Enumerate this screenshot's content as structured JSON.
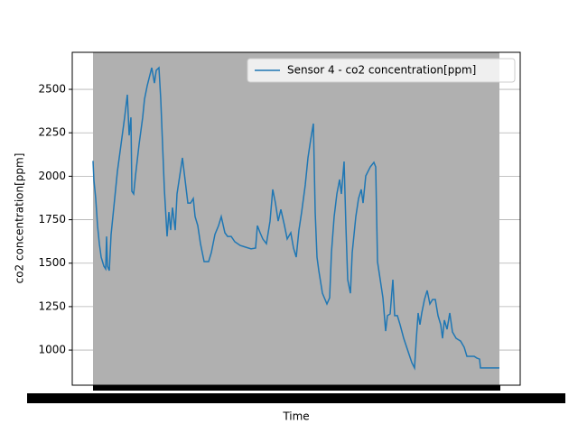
{
  "chart_data": {
    "type": "line",
    "xlabel": "Time",
    "ylabel": "co2 concentration[ppm]",
    "x": [
      0,
      1,
      3,
      5,
      7,
      9,
      12,
      14,
      15,
      16,
      18,
      20,
      23,
      27,
      31,
      35,
      38,
      40,
      42,
      43,
      45,
      47,
      51,
      55,
      57,
      60,
      65,
      68,
      70,
      73,
      75,
      77,
      79,
      82,
      84,
      86,
      88,
      91,
      93,
      96,
      99,
      102,
      105,
      108,
      111,
      113,
      116,
      119,
      123,
      128,
      131,
      135,
      139,
      142,
      146,
      149,
      153,
      157,
      163,
      169,
      175,
      180,
      182,
      185,
      188,
      192,
      196,
      199,
      202,
      205,
      208,
      212,
      215,
      219,
      222,
      225,
      228,
      231,
      235,
      238,
      241,
      244,
      246,
      248,
      250,
      254,
      259,
      262,
      264,
      267,
      270,
      273,
      275,
      278,
      280,
      282,
      285,
      287,
      291,
      294,
      297,
      299,
      302,
      307,
      311,
      313,
      315,
      318,
      321,
      324,
      326,
      329,
      332,
      334,
      337,
      340,
      344,
      349,
      353,
      356,
      358,
      360,
      362,
      364,
      367,
      370,
      373,
      376,
      379,
      382,
      385,
      387,
      389,
      392,
      395,
      398,
      402,
      407,
      411,
      414,
      418,
      422,
      425,
      428,
      429,
      450
    ],
    "series": [
      {
        "name": "Sensor 4 -  co2 concentration[ppm]",
        "color": "#1f77b4",
        "values": [
          2088,
          1976,
          1872,
          1716,
          1612,
          1535,
          1483,
          1467,
          1654,
          1483,
          1457,
          1665,
          1820,
          2028,
          2183,
          2339,
          2469,
          2235,
          2339,
          1914,
          1898,
          2002,
          2183,
          2339,
          2443,
          2521,
          2624,
          2536,
          2609,
          2624,
          2443,
          2183,
          1924,
          1654,
          1794,
          1690,
          1820,
          1690,
          1898,
          2002,
          2106,
          1976,
          1846,
          1846,
          1872,
          1768,
          1716,
          1612,
          1509,
          1509,
          1561,
          1665,
          1716,
          1768,
          1675,
          1654,
          1654,
          1623,
          1602,
          1592,
          1582,
          1587,
          1716,
          1675,
          1639,
          1612,
          1742,
          1924,
          1846,
          1742,
          1809,
          1716,
          1639,
          1675,
          1587,
          1535,
          1690,
          1794,
          1950,
          2106,
          2210,
          2303,
          1794,
          1535,
          1457,
          1327,
          1265,
          1301,
          1561,
          1768,
          1898,
          1981,
          1898,
          2085,
          1716,
          1405,
          1327,
          1561,
          1768,
          1872,
          1924,
          1846,
          2002,
          2054,
          2080,
          2054,
          1509,
          1405,
          1301,
          1109,
          1198,
          1208,
          1405,
          1198,
          1198,
          1146,
          1068,
          990,
          928,
          897,
          1068,
          1213,
          1146,
          1213,
          1291,
          1343,
          1265,
          1291,
          1291,
          1198,
          1146,
          1068,
          1172,
          1120,
          1213,
          1104,
          1068,
          1052,
          1016,
          964,
          964,
          964,
          954,
          948,
          897,
          897
        ]
      }
    ],
    "xlim": [
      -23,
      473
    ],
    "ylim": [
      798,
      2713
    ],
    "yticks": [
      1000,
      1250,
      1500,
      1750,
      2000,
      2250,
      2500
    ],
    "grid": true,
    "span": [
      0,
      450
    ],
    "span_color": "#b0b0b0",
    "legend": "upper right"
  }
}
